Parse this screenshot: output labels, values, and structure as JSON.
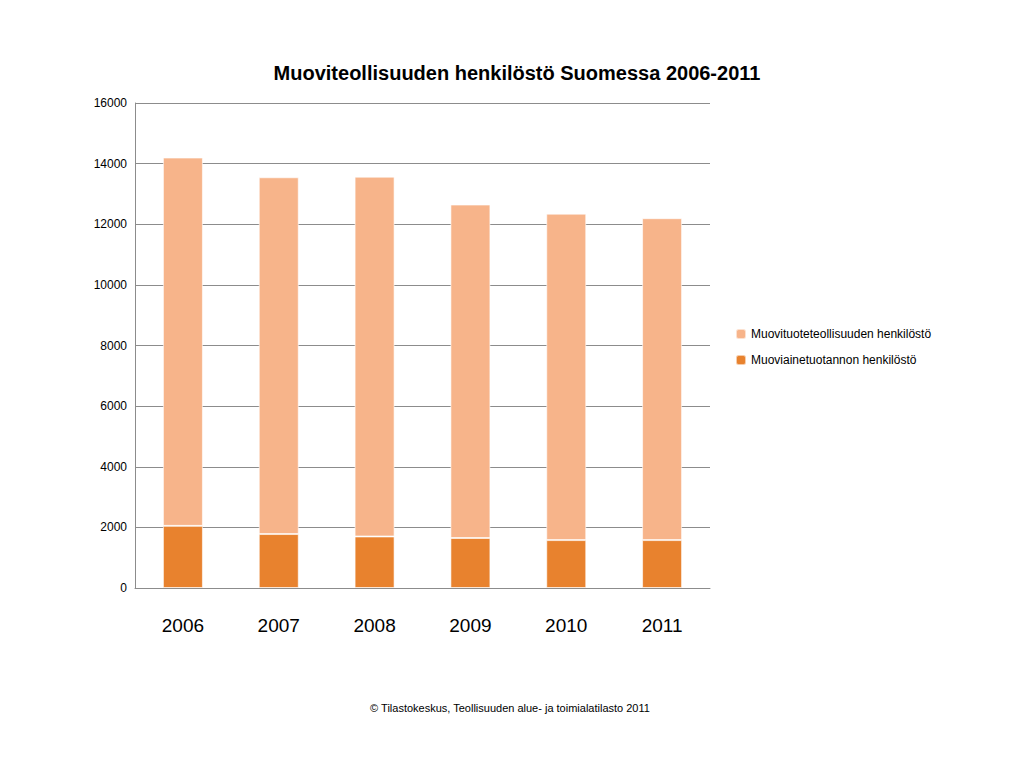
{
  "chart_data": {
    "type": "bar",
    "title": "Muoviteollisuuden henkilöstö Suomessa 2006-2011",
    "source": "© Tilastokeskus, Teollisuuden alue- ja toimialatilasto 2011",
    "categories": [
      "2006",
      "2007",
      "2008",
      "2009",
      "2010",
      "2011"
    ],
    "series": [
      {
        "name": "Muoviainetuotannon henkilöstö",
        "color": "#e8822e",
        "values": [
          2050,
          1780,
          1700,
          1650,
          1580,
          1580
        ]
      },
      {
        "name": "Muovituoteteollisuuden henkilöstö",
        "color": "#f7b48a",
        "values": [
          12150,
          11770,
          11870,
          11000,
          10770,
          10620
        ]
      }
    ],
    "stacked": true,
    "ylim": [
      0,
      16000
    ],
    "yticks": [
      0,
      2000,
      4000,
      6000,
      8000,
      10000,
      12000,
      14000,
      16000
    ],
    "grid": true,
    "legend": "right"
  }
}
